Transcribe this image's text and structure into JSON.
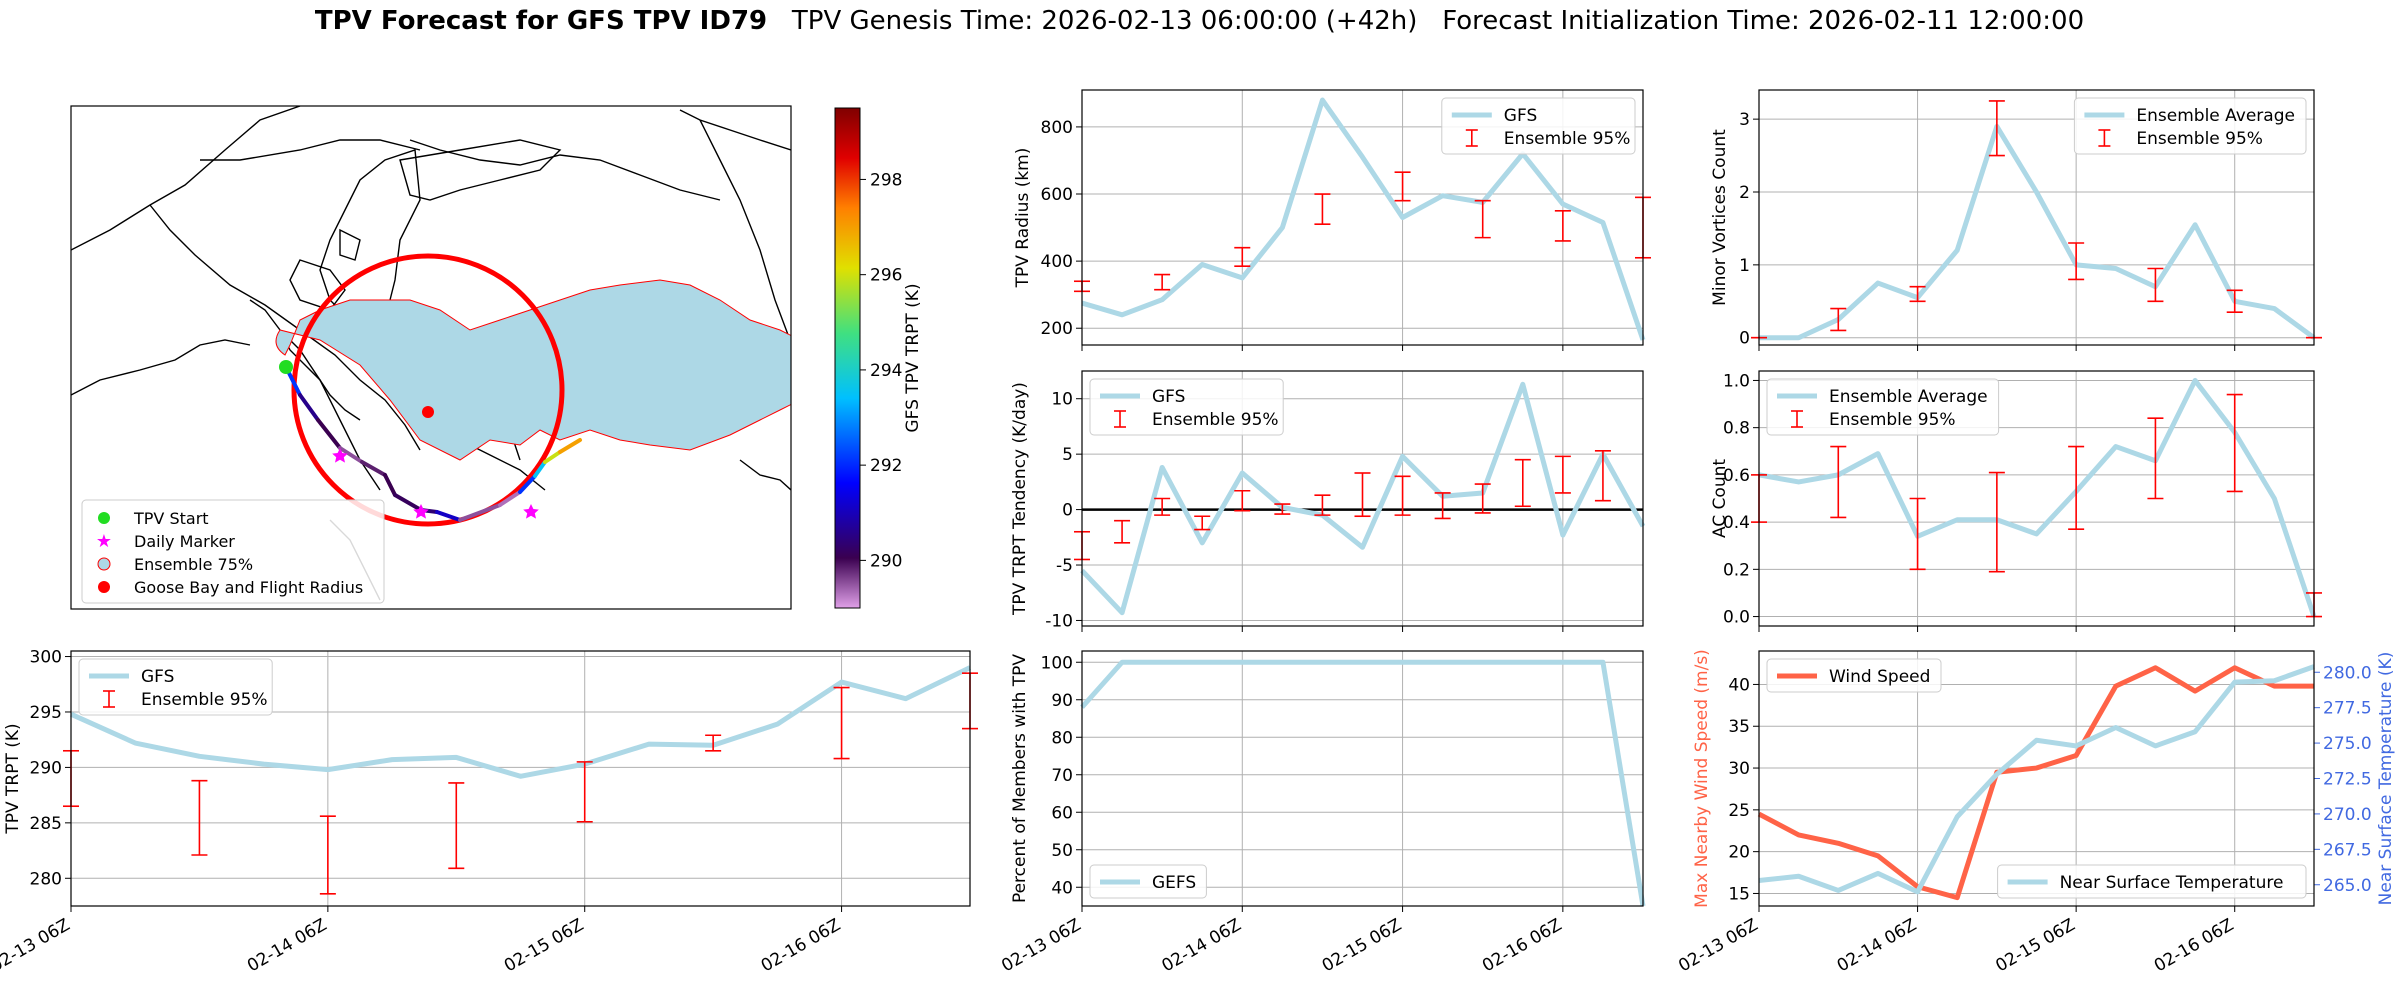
{
  "header": {
    "title": "TPV Forecast for GFS TPV ID79",
    "genesis": "TPV Genesis Time: 2026-02-13 06:00:00 (+42h)",
    "init": "Forecast Initialization Time: 2026-02-11 12:00:00"
  },
  "colors": {
    "gfs_line": "#add8e6",
    "error_bar": "#ff0000",
    "wind": "#ff6347",
    "temp_axis": "#4169e1",
    "flight_radius": "#ff0000",
    "ensemble_fill": "#add8e6"
  },
  "x_ticks": [
    "02-13 06Z",
    "02-14 06Z",
    "02-15 06Z",
    "02-16 06Z"
  ],
  "chart_data": [
    {
      "id": "map",
      "type": "map",
      "colorbar": {
        "label": "GFS TPV TRPT (K)",
        "ticks": [
          290,
          292,
          294,
          296,
          298
        ],
        "range": [
          289,
          299.5
        ]
      },
      "legend": [
        "TPV Start",
        "Daily Marker",
        "Ensemble 75%",
        "Goose Bay and Flight Radius"
      ],
      "legend_placement": "lower-left",
      "track_trpt": [
        292.0,
        290.5,
        290.0,
        289.5,
        289.8,
        290.0,
        290.1,
        290.3,
        291.0,
        289.5,
        289.3,
        292.0,
        293.5,
        296.0,
        297.0,
        299.0
      ]
    },
    {
      "id": "radius",
      "type": "line",
      "ylabel": "TPV Radius (km)",
      "yticks": [
        200,
        400,
        600,
        800
      ],
      "ylim": [
        150,
        910
      ],
      "series": [
        {
          "name": "GFS",
          "values": [
            275,
            240,
            285,
            390,
            350,
            500,
            880,
            710,
            530,
            595,
            575,
            720,
            570,
            515,
            165
          ]
        }
      ],
      "errorbars": {
        "name": "Ensemble 95%",
        "positions": [
          0,
          2,
          4,
          6,
          8,
          10,
          12,
          14
        ],
        "low": [
          310,
          315,
          385,
          510,
          580,
          470,
          460,
          410
        ],
        "high": [
          340,
          360,
          440,
          600,
          665,
          580,
          550,
          590
        ]
      },
      "legend_placement": "upper-right"
    },
    {
      "id": "minor",
      "type": "line",
      "ylabel": "Minor Vortices Count",
      "yticks": [
        0,
        1,
        2,
        3
      ],
      "ylim": [
        -0.1,
        3.4
      ],
      "series": [
        {
          "name": "Ensemble Average",
          "values": [
            0,
            0,
            0.25,
            0.75,
            0.55,
            1.2,
            2.9,
            2.0,
            1.0,
            0.95,
            0.7,
            1.55,
            0.5,
            0.4,
            0.0
          ]
        }
      ],
      "errorbars": {
        "name": "Ensemble 95%",
        "positions": [
          0,
          2,
          4,
          6,
          8,
          10,
          12,
          14
        ],
        "low": [
          0,
          0.1,
          0.5,
          2.5,
          0.8,
          0.5,
          0.35,
          0
        ],
        "high": [
          0,
          0.4,
          0.7,
          3.25,
          1.3,
          0.95,
          0.65,
          0
        ]
      },
      "legend_placement": "upper-right"
    },
    {
      "id": "tendency",
      "type": "line",
      "ylabel": "TPV TRPT Tendency (K/day)",
      "yticks": [
        -10,
        -5,
        0,
        5,
        10
      ],
      "ylim": [
        -10.5,
        12.5
      ],
      "zero_line": true,
      "series": [
        {
          "name": "GFS",
          "values": [
            -5.5,
            -9.3,
            3.8,
            -3.0,
            3.3,
            0.2,
            -0.5,
            -3.4,
            4.8,
            1.2,
            1.5,
            11.3,
            -2.3,
            5.0,
            -1.5
          ]
        }
      ],
      "errorbars": {
        "name": "Ensemble 95%",
        "positions": [
          0,
          1,
          2,
          3,
          4,
          5,
          6,
          7,
          8,
          9,
          10,
          11,
          12,
          13
        ],
        "low": [
          -4.5,
          -3.0,
          -0.5,
          -1.8,
          -0.1,
          -0.4,
          -0.5,
          -0.6,
          -0.5,
          -0.8,
          -0.3,
          0.3,
          1.5,
          0.8
        ],
        "high": [
          -2.0,
          -1.0,
          1.0,
          -0.6,
          1.7,
          0.5,
          1.3,
          3.3,
          3.0,
          1.5,
          2.3,
          4.5,
          4.8,
          5.3
        ]
      },
      "legend_placement": "upper-left"
    },
    {
      "id": "ac",
      "type": "line",
      "ylabel": "AC Count",
      "yticks": [
        0.0,
        0.2,
        0.4,
        0.6,
        0.8,
        1.0
      ],
      "ylim": [
        -0.04,
        1.04
      ],
      "series": [
        {
          "name": "Ensemble Average",
          "values": [
            0.6,
            0.57,
            0.6,
            0.69,
            0.34,
            0.41,
            0.41,
            0.35,
            0.53,
            0.72,
            0.66,
            1.0,
            0.78,
            0.5,
            0.0
          ]
        }
      ],
      "errorbars": {
        "name": "Ensemble 95%",
        "positions": [
          0,
          2,
          4,
          6,
          8,
          10,
          12,
          14
        ],
        "low": [
          0.4,
          0.42,
          0.2,
          0.19,
          0.37,
          0.5,
          0.53,
          0.0
        ],
        "high": [
          0.6,
          0.72,
          0.5,
          0.61,
          0.72,
          0.84,
          0.94,
          0.1
        ]
      },
      "legend_placement": "upper-left"
    },
    {
      "id": "trpt",
      "type": "line",
      "ylabel": "TPV TRPT (K)",
      "yticks": [
        280,
        285,
        290,
        295,
        300
      ],
      "ylim": [
        277.5,
        300.5
      ],
      "series": [
        {
          "name": "GFS",
          "values": [
            294.8,
            292.2,
            291.0,
            290.3,
            289.8,
            290.7,
            290.9,
            289.2,
            290.3,
            292.1,
            292.0,
            293.9,
            297.7,
            296.2,
            299.0
          ]
        }
      ],
      "errorbars": {
        "name": "Ensemble 95%",
        "positions": [
          0,
          2,
          4,
          6,
          8,
          10,
          12,
          14
        ],
        "low": [
          286.5,
          282.1,
          278.6,
          280.9,
          285.1,
          291.5,
          290.8,
          293.5
        ],
        "high": [
          291.5,
          288.8,
          285.6,
          288.6,
          290.5,
          292.9,
          297.2,
          298.5
        ]
      },
      "legend_placement": "upper-left"
    },
    {
      "id": "percent",
      "type": "line",
      "ylabel": "Percent of Members with TPV",
      "yticks": [
        40,
        50,
        60,
        70,
        80,
        90,
        100
      ],
      "ylim": [
        35,
        103
      ],
      "series": [
        {
          "name": "GEFS",
          "values": [
            88,
            100,
            100,
            100,
            100,
            100,
            100,
            100,
            100,
            100,
            100,
            100,
            100,
            100,
            35
          ]
        }
      ],
      "legend_placement": "lower-left"
    },
    {
      "id": "wind",
      "type": "line",
      "ylabel": "Max Nearby Wind Speed (m/s)",
      "ylabel2": "Near Surface Temperature (K)",
      "yticks": [
        15,
        20,
        25,
        30,
        35,
        40
      ],
      "ylim": [
        13.5,
        44
      ],
      "yticks2": [
        265.0,
        267.5,
        270.0,
        272.5,
        275.0,
        277.5,
        280.0
      ],
      "ylim2": [
        263.5,
        281.5
      ],
      "series": [
        {
          "name": "Wind Speed",
          "values": [
            24.5,
            22.0,
            21.0,
            19.5,
            15.8,
            14.5,
            29.5,
            30.0,
            31.5,
            39.8,
            42.0,
            39.2,
            42.0,
            39.8,
            39.8
          ]
        },
        {
          "name": "Near Surface Temperature",
          "values": [
            265.3,
            265.6,
            264.6,
            265.8,
            264.5,
            269.8,
            272.8,
            275.2,
            274.8,
            276.1,
            274.8,
            275.8,
            279.3,
            279.4,
            280.4
          ]
        }
      ],
      "legend_placement": "upper-left / lower-right"
    }
  ]
}
